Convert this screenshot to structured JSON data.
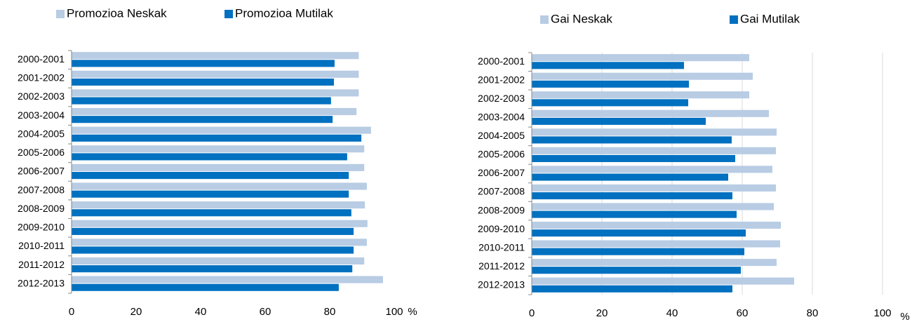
{
  "chart_data": [
    {
      "type": "bar",
      "orientation": "horizontal",
      "categories": [
        "2000-2001",
        "2001-2002",
        "2002-2003",
        "2003-2004",
        "2004-2005",
        "2005-2006",
        "2006-2007",
        "2007-2008",
        "2008-2009",
        "2009-2010",
        "2010-2011",
        "2011-2012",
        "2012-2013"
      ],
      "series": [
        {
          "name": "Promozioa Neskak",
          "color": "#b8cce4",
          "values": [
            89,
            89,
            89,
            88.3,
            92.8,
            90.7,
            90.7,
            91.5,
            90.9,
            91.7,
            91.5,
            90.7,
            96.5
          ]
        },
        {
          "name": "Promozioa Mutilak",
          "color": "#0070c0",
          "values": [
            81.5,
            81.3,
            80.4,
            80.9,
            89.8,
            85.4,
            85.9,
            85.9,
            86.7,
            87.4,
            87.4,
            87,
            82.8
          ]
        }
      ],
      "x_label": "%",
      "xlim": [
        0,
        100
      ],
      "xticks": [
        0,
        20,
        40,
        60,
        80,
        100
      ],
      "grid": false,
      "legend": "top"
    },
    {
      "type": "bar",
      "orientation": "horizontal",
      "categories": [
        "2000-2001",
        "2001-2002",
        "2002-2003",
        "2003-2004",
        "2004-2005",
        "2005-2006",
        "2006-2007",
        "2007-2008",
        "2008-2009",
        "2009-2010",
        "2010-2011",
        "2011-2012",
        "2012-2013"
      ],
      "series": [
        {
          "name": "Gai  Neskak",
          "color": "#b8cce4",
          "values": [
            62,
            63,
            62,
            67.6,
            69.8,
            69.6,
            68.6,
            69.6,
            69,
            71,
            70.8,
            69.8,
            74.8
          ]
        },
        {
          "name": "Gai  Mutilak",
          "color": "#0070c0",
          "values": [
            43.4,
            44.8,
            44.6,
            49.6,
            57,
            58,
            56,
            57.2,
            58.4,
            61,
            60.6,
            59.6,
            57.2
          ]
        }
      ],
      "x_label": "%",
      "xlim": [
        0,
        100
      ],
      "xticks": [
        0,
        20,
        40,
        60,
        80,
        100
      ],
      "grid": true,
      "legend": "top"
    }
  ]
}
